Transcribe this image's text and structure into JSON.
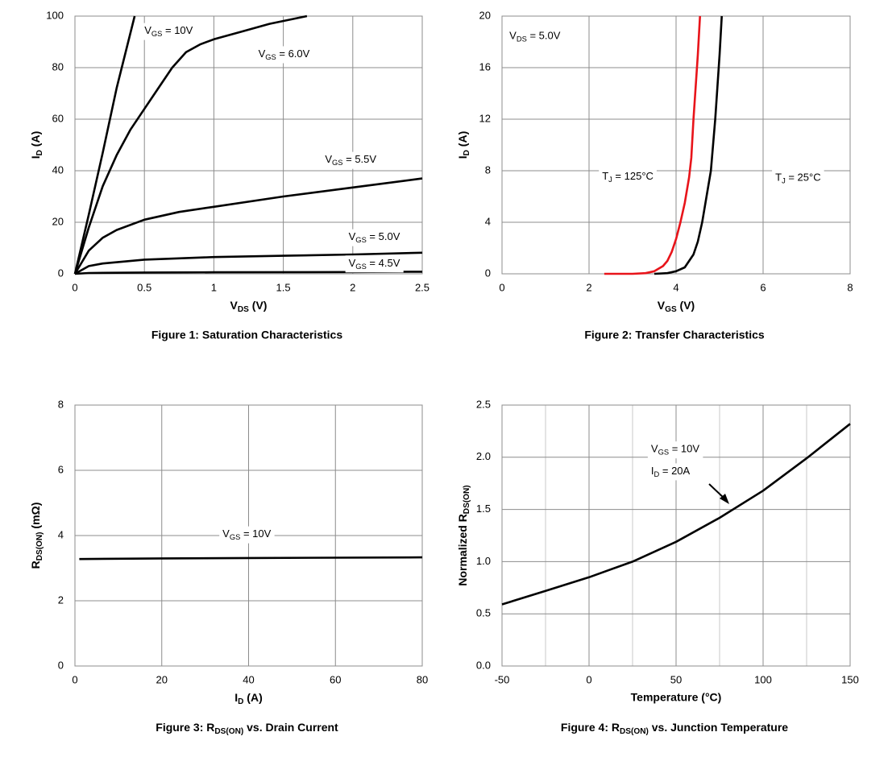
{
  "chart_data": [
    {
      "type": "line",
      "title": "Figure 1:  Saturation Characteristics",
      "x_label": [
        "V",
        "DS",
        " (V)"
      ],
      "y_label": [
        "I",
        "D",
        " (A)"
      ],
      "xlim": [
        0,
        2.5
      ],
      "xticks": [
        0,
        0.5,
        1,
        1.5,
        2,
        2.5
      ],
      "ylim": [
        0,
        100
      ],
      "yticks": [
        0,
        20,
        40,
        60,
        80,
        100
      ],
      "grid": true,
      "series": [
        {
          "color": "#000000",
          "x": [
            0,
            0.1,
            0.2,
            0.3,
            0.43
          ],
          "values": [
            0,
            23,
            47,
            72,
            100
          ]
        },
        {
          "color": "#000000",
          "x": [
            0,
            0.1,
            0.2,
            0.3,
            0.4,
            0.5,
            0.6,
            0.7,
            0.8,
            0.9,
            1.0,
            1.2,
            1.4,
            1.67
          ],
          "values": [
            0,
            18,
            34,
            46,
            56,
            64,
            72,
            80,
            86,
            89,
            91,
            94,
            97,
            100
          ]
        },
        {
          "color": "#000000",
          "x": [
            0,
            0.1,
            0.2,
            0.3,
            0.5,
            0.75,
            1,
            1.5,
            2,
            2.5
          ],
          "values": [
            0,
            9,
            14,
            17,
            21,
            24,
            26,
            30,
            33.5,
            37
          ]
        },
        {
          "color": "#000000",
          "x": [
            0,
            0.1,
            0.2,
            0.5,
            1,
            1.5,
            2,
            2.5
          ],
          "values": [
            0,
            3,
            4,
            5.5,
            6.5,
            7,
            7.5,
            8.2
          ]
        },
        {
          "color": "#000000",
          "x": [
            0,
            0.1,
            0.5,
            1,
            2,
            2.5
          ],
          "values": [
            0,
            0.3,
            0.5,
            0.6,
            0.7,
            0.8
          ]
        }
      ],
      "annotations": [
        [
          "V",
          "GS",
          " = 10V"
        ],
        [
          "V",
          "GS",
          " = 6.0V"
        ],
        [
          "V",
          "GS",
          " = 5.5V"
        ],
        [
          "V",
          "GS",
          " = 5.0V"
        ],
        [
          "V",
          "GS",
          " = 4.5V"
        ]
      ]
    },
    {
      "type": "line",
      "title": "Figure 2:  Transfer Characteristics",
      "x_label": [
        "V",
        "GS",
        " (V)"
      ],
      "y_label": [
        "I",
        "D",
        " (A)"
      ],
      "xlim": [
        0,
        8
      ],
      "xticks": [
        0,
        2,
        4,
        6,
        8
      ],
      "ylim": [
        0,
        20
      ],
      "yticks": [
        0,
        4,
        8,
        12,
        16,
        20
      ],
      "grid": true,
      "series": [
        {
          "color": "#e8141a",
          "x": [
            2.35,
            3.0,
            3.3,
            3.5,
            3.7,
            3.8,
            3.9,
            4.0,
            4.1,
            4.2,
            4.3,
            4.35,
            4.4,
            4.5,
            4.55
          ],
          "values": [
            0,
            0,
            0.05,
            0.2,
            0.6,
            1,
            1.7,
            2.7,
            4,
            5.5,
            7.5,
            9,
            12,
            17,
            20
          ]
        },
        {
          "color": "#000000",
          "x": [
            3.5,
            3.8,
            4.0,
            4.2,
            4.4,
            4.5,
            4.6,
            4.7,
            4.8,
            4.9,
            5.0,
            5.05
          ],
          "values": [
            0,
            0.05,
            0.2,
            0.5,
            1.5,
            2.5,
            4,
            6,
            8,
            12,
            17,
            20
          ]
        }
      ],
      "annotations": [
        [
          "V",
          "DS",
          " = 5.0V"
        ],
        [
          "T",
          "J",
          " = 125°C"
        ],
        [
          "T",
          "J",
          " = 25°C"
        ]
      ]
    },
    {
      "type": "line",
      "title": [
        "Figure 3:  R",
        "DS(ON)",
        " vs. Drain Current"
      ],
      "x_label": [
        "I",
        "D",
        " (A)"
      ],
      "y_label": [
        "R",
        "DS(ON)",
        " (mΩ)"
      ],
      "xlim": [
        0,
        80
      ],
      "xticks": [
        0,
        20,
        40,
        60,
        80
      ],
      "ylim": [
        0,
        8
      ],
      "yticks": [
        0,
        2,
        4,
        6,
        8
      ],
      "grid": true,
      "series": [
        {
          "color": "#000000",
          "x": [
            1,
            20,
            40,
            60,
            80
          ],
          "values": [
            3.28,
            3.3,
            3.31,
            3.32,
            3.33
          ]
        }
      ],
      "annotations": [
        [
          "V",
          "GS",
          " = 10V"
        ]
      ]
    },
    {
      "type": "line",
      "title": [
        "Figure 4:  R",
        "DS(ON)",
        " vs. Junction Temperature"
      ],
      "x_label": "Temperature (°C)",
      "y_label": [
        "Normalized R",
        "DS(ON)"
      ],
      "xlim": [
        -50,
        150
      ],
      "xticks": [
        -50,
        0,
        50,
        100,
        150
      ],
      "x_minor_ticks": [
        -25,
        25,
        75,
        125
      ],
      "ylim": [
        0,
        2.5
      ],
      "yticks": [
        {
          "value": 0,
          "label": "0.0"
        },
        0.5,
        {
          "value": 1,
          "label": "1.0"
        },
        1.5,
        {
          "value": 2,
          "label": "2.0"
        },
        2.5
      ],
      "grid": true,
      "series": [
        {
          "color": "#000000",
          "x": [
            -50,
            -25,
            0,
            25,
            50,
            75,
            100,
            125,
            150
          ],
          "values": [
            0.59,
            0.72,
            0.85,
            1.0,
            1.19,
            1.42,
            1.68,
            1.99,
            2.32
          ]
        }
      ],
      "annotations": [
        [
          "V",
          "GS",
          " = 10V"
        ],
        [
          "I",
          "D",
          " = 20A"
        ]
      ]
    }
  ]
}
